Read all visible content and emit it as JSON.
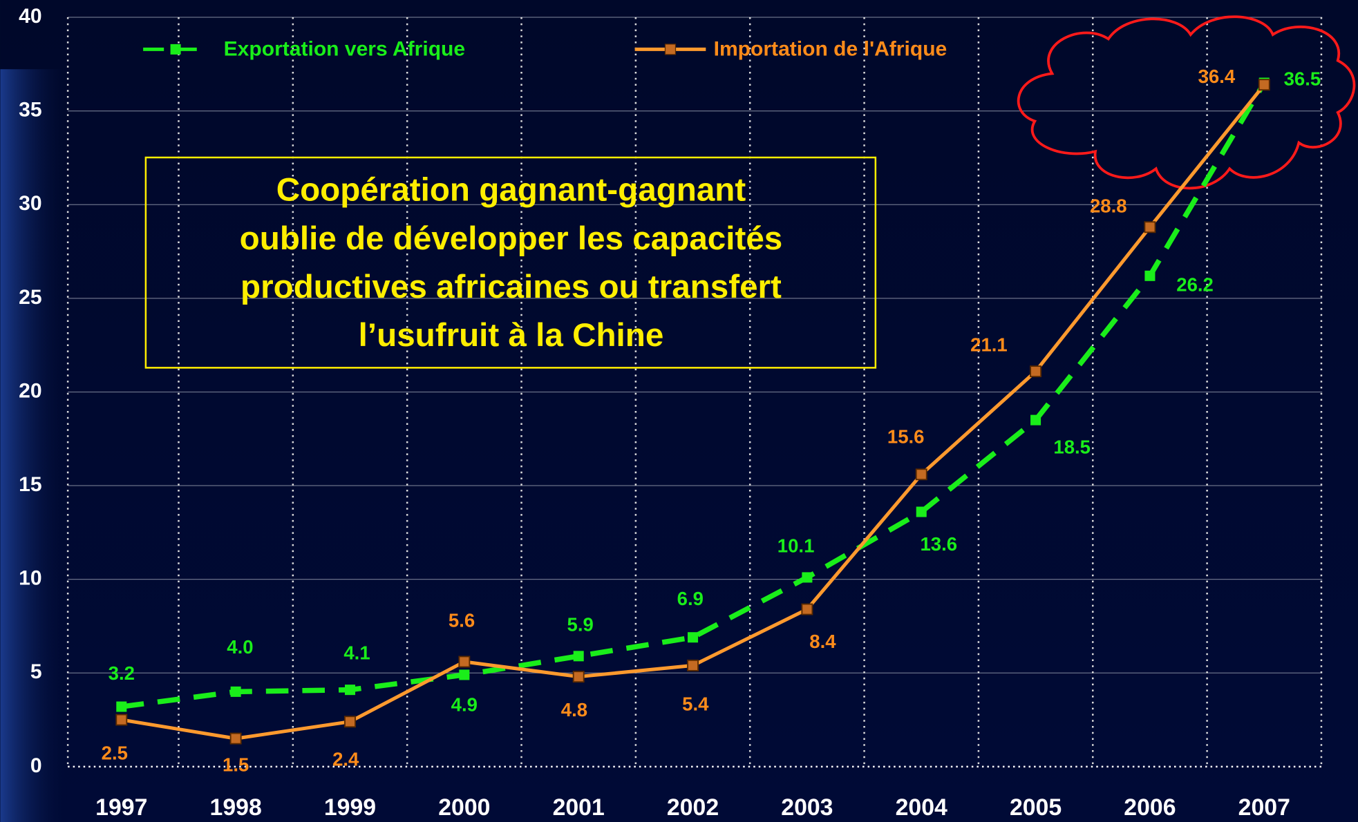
{
  "chart_data": {
    "type": "line",
    "categories": [
      "1997",
      "1998",
      "1999",
      "2000",
      "2001",
      "2002",
      "2003",
      "2004",
      "2005",
      "2006",
      "2007"
    ],
    "series": [
      {
        "name": "Exportation vers Afrique",
        "color": "#1aee1a",
        "style": "dashed",
        "values": [
          3.2,
          4.0,
          4.1,
          4.9,
          5.9,
          6.9,
          10.1,
          13.6,
          18.5,
          26.2,
          36.5
        ],
        "value_labels": [
          "3.2",
          "4.0",
          "4.1",
          "4.9",
          "5.9",
          "6.9",
          "10.1",
          "13.6",
          "18.5",
          "26.2",
          "36.5"
        ]
      },
      {
        "name": "Importation de l'Afrique",
        "color": "#ff9a2e",
        "style": "solid",
        "values": [
          2.5,
          1.5,
          2.4,
          5.6,
          4.8,
          5.4,
          8.4,
          15.6,
          21.1,
          28.8,
          36.4
        ],
        "value_labels": [
          "2.5",
          "1.5",
          "2.4",
          "5.6",
          "4.8",
          "5.4",
          "8.4",
          "15.6",
          "21.1",
          "28.8",
          "36.4"
        ]
      }
    ],
    "ylim": [
      0,
      40
    ],
    "yticks": [
      0,
      5,
      10,
      15,
      20,
      25,
      30,
      35,
      40
    ],
    "grid": true,
    "annotation": [
      "Coopération gagnant-gagnant",
      "oublie de développer les capacités",
      "productives africaines ou transfert",
      "l’usufruit à la Chine"
    ]
  }
}
